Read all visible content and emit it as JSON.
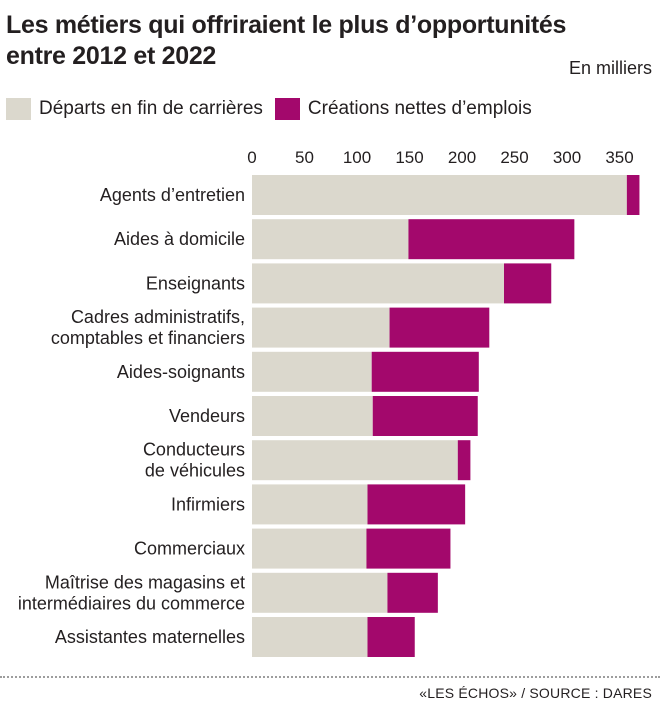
{
  "header": {
    "title_line1": "Les métiers qui offriraient le plus d’opportunités",
    "title_line2": "entre 2012 et 2022",
    "unit": "En milliers"
  },
  "footer": {
    "source": "«LES ÉCHOS» / SOURCE : DARES"
  },
  "colors": {
    "departs": "#dbd8cd",
    "creations": "#a3086c",
    "text": "#231f20"
  },
  "chart_data": {
    "type": "bar",
    "orientation": "horizontal",
    "stacked": true,
    "title": "Les métiers qui offriraient le plus d’opportunités entre 2012 et 2022",
    "unit": "En milliers",
    "xlim": [
      0,
      385
    ],
    "xticks": [
      0,
      50,
      100,
      150,
      200,
      250,
      300,
      350
    ],
    "grid": false,
    "legend_position": "top",
    "categories": [
      "Agents d’entretien",
      "Aides à domicile",
      "Enseignants",
      "Cadres administratifs, comptables et financiers",
      "Aides-soignants",
      "Vendeurs",
      "Conducteurs de véhicules",
      "Infirmiers",
      "Commerciaux",
      "Maîtrise des magasins et intermédiaires du commerce",
      "Assistantes maternelles"
    ],
    "category_lines": [
      [
        "Agents d’entretien"
      ],
      [
        "Aides à domicile"
      ],
      [
        "Enseignants"
      ],
      [
        "Cadres administratifs,",
        "comptables et financiers"
      ],
      [
        "Aides-soignants"
      ],
      [
        "Vendeurs"
      ],
      [
        "Conducteurs",
        "de véhicules"
      ],
      [
        "Infirmiers"
      ],
      [
        "Commerciaux"
      ],
      [
        "Maîtrise des magasins et",
        "intermédiaires du commerce"
      ],
      [
        "Assistantes maternelles"
      ]
    ],
    "series": [
      {
        "name": "Départs en fin de carrières",
        "color": "#dbd8cd",
        "values": [
          357,
          149,
          240,
          131,
          114,
          115,
          196,
          110,
          109,
          129,
          110
        ]
      },
      {
        "name": "Créations nettes d’emplois",
        "color": "#a3086c",
        "values": [
          12,
          158,
          45,
          95,
          102,
          100,
          12,
          93,
          80,
          48,
          45
        ]
      }
    ]
  }
}
